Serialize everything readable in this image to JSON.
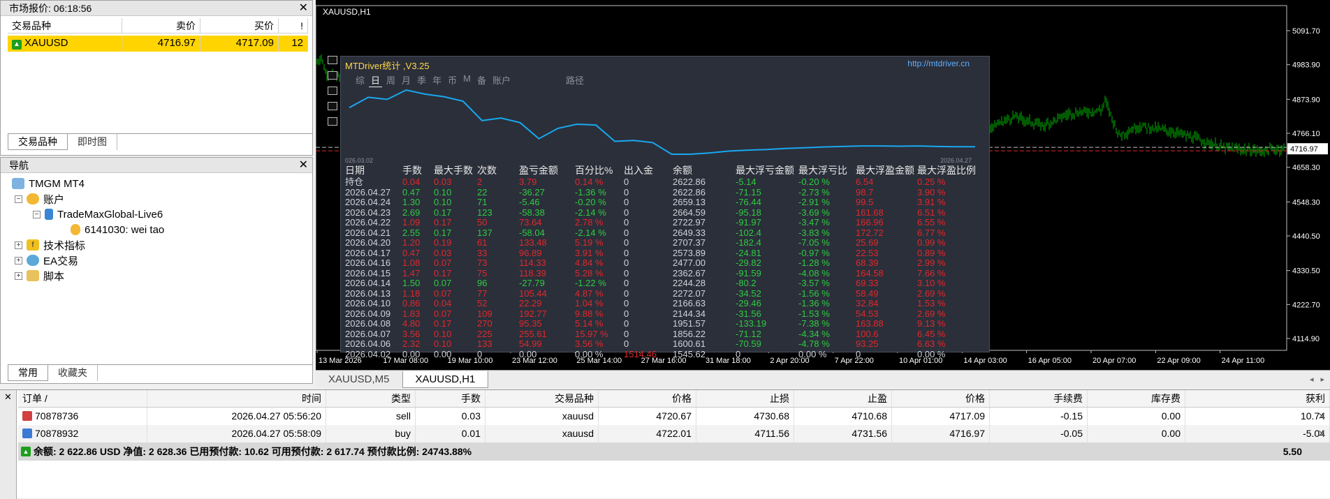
{
  "market_watch": {
    "title": "市场报价: 06:18:56",
    "columns": [
      "交易品种",
      "卖价",
      "买价",
      "!"
    ],
    "row": {
      "symbol": "XAUUSD",
      "bid": "4716.97",
      "ask": "4717.09",
      "spread": "12"
    },
    "tabs": [
      "交易品种",
      "即时图"
    ]
  },
  "navigator": {
    "title": "导航",
    "items": {
      "root": "TMGM MT4",
      "accounts": "账户",
      "server": "TradeMaxGlobal-Live6",
      "account": "6141030: wei tao",
      "indicators": "技术指标",
      "experts": "EA交易",
      "scripts": "脚本"
    },
    "tabs": [
      "常用",
      "收藏夹"
    ]
  },
  "chart": {
    "symbol_label": "XAUUSD,H1",
    "price_axis": [
      "5091.70",
      "4983.90",
      "4873.90",
      "4766.10",
      "4658.30",
      "4548.30",
      "4440.50",
      "4330.50",
      "4222.70",
      "4114.90"
    ],
    "current_price": "4716.97",
    "time_axis": [
      "13 Mar 2026",
      "17 Mar 08:00",
      "19 Mar 10:00",
      "23 Mar 12:00",
      "25 Mar 14:00",
      "27 Mar 16:00",
      "31 Mar 18:00",
      "2 Apr 20:00",
      "7 Apr 22:00",
      "10 Apr 01:00",
      "14 Apr 03:00",
      "16 Apr 05:00",
      "20 Apr 07:00",
      "22 Apr 09:00",
      "24 Apr 11:00"
    ],
    "tabs": [
      "XAUUSD,M5",
      "XAUUSD,H1"
    ],
    "colors": {
      "bars": "#00b400",
      "bid_line": "#c0c0c0",
      "ask_line": "#e0282b",
      "background": "#000000"
    }
  },
  "mtdriver": {
    "title": "MTDriver统计 ,V3.25",
    "url": "http://mtdriver.cn",
    "menu": [
      "综",
      "日",
      "周",
      "月",
      "季",
      "年",
      "币",
      "M",
      "备",
      "账户",
      "路径"
    ],
    "curve_start_label": "026.03.02",
    "curve_end_label": "2026.04.27",
    "headers": [
      "日期",
      "手数",
      "最大手数",
      "次数",
      "盈亏金额",
      "百分比%",
      "出入金",
      "余额",
      "最大浮亏金额",
      "最大浮亏比",
      "最大浮盈金额",
      "最大浮盈比例"
    ],
    "rows": [
      [
        "持仓",
        "0.04",
        "0.03",
        "2",
        "3.79",
        "0.14 %",
        "0",
        "2622.86",
        "-5.14",
        "-0.20 %",
        "6.54",
        "0.25 %"
      ],
      [
        "2026.04.27",
        "0.47",
        "0.10",
        "22",
        "-36.27",
        "-1.36 %",
        "0",
        "2622.86",
        "-71.15",
        "-2.73 %",
        "98.7",
        "3.90 %"
      ],
      [
        "2026.04.24",
        "1.30",
        "0.10",
        "71",
        "-5.46",
        "-0.20 %",
        "0",
        "2659.13",
        "-76.44",
        "-2.91 %",
        "99.5",
        "3.91 %"
      ],
      [
        "2026.04.23",
        "2.69",
        "0.17",
        "123",
        "-58.38",
        "-2.14 %",
        "0",
        "2664.59",
        "-95.18",
        "-3.69 %",
        "161.68",
        "6.51 %"
      ],
      [
        "2026.04.22",
        "1.09",
        "0.17",
        "50",
        "73.64",
        "2.78 %",
        "0",
        "2722.97",
        "-91.97",
        "-3.47 %",
        "166.96",
        "6.55 %"
      ],
      [
        "2026.04.21",
        "2.55",
        "0.17",
        "137",
        "-58.04",
        "-2.14 %",
        "0",
        "2649.33",
        "-102.4",
        "-3.83 %",
        "172.72",
        "6.77 %"
      ],
      [
        "2026.04.20",
        "1.20",
        "0.19",
        "61",
        "133.48",
        "5.19 %",
        "0",
        "2707.37",
        "-182.4",
        "-7.05 %",
        "25.69",
        "0.99 %"
      ],
      [
        "2026.04.17",
        "0.47",
        "0.03",
        "33",
        "96.89",
        "3.91 %",
        "0",
        "2573.89",
        "-24.81",
        "-0.97 %",
        "22.53",
        "0.89 %"
      ],
      [
        "2026.04.16",
        "1.08",
        "0.07",
        "73",
        "114.33",
        "4.84 %",
        "0",
        "2477.00",
        "-29.82",
        "-1.28 %",
        "68.39",
        "2.99 %"
      ],
      [
        "2026.04.15",
        "1.47",
        "0.17",
        "75",
        "118.39",
        "5.28 %",
        "0",
        "2362.67",
        "-91.59",
        "-4.08 %",
        "164.58",
        "7.66 %"
      ],
      [
        "2026.04.14",
        "1.50",
        "0.07",
        "96",
        "-27.79",
        "-1.22 %",
        "0",
        "2244.28",
        "-80.2",
        "-3.57 %",
        "69.33",
        "3.10 %"
      ],
      [
        "2026.04.13",
        "1.18",
        "0.07",
        "77",
        "105.44",
        "4.87 %",
        "0",
        "2272.07",
        "-34.52",
        "-1.56 %",
        "58.49",
        "2.69 %"
      ],
      [
        "2026.04.10",
        "0.86",
        "0.04",
        "52",
        "22.29",
        "1.04 %",
        "0",
        "2166.63",
        "-29.46",
        "-1.36 %",
        "32.84",
        "1.53 %"
      ],
      [
        "2026.04.09",
        "1.83",
        "0.07",
        "109",
        "192.77",
        "9.88 %",
        "0",
        "2144.34",
        "-31.56",
        "-1.53 %",
        "54.53",
        "2.69 %"
      ],
      [
        "2026.04.08",
        "4.80",
        "0.17",
        "270",
        "95.35",
        "5.14 %",
        "0",
        "1951.57",
        "-133.19",
        "-7.38 %",
        "163.88",
        "9.13 %"
      ],
      [
        "2026.04.07",
        "3.56",
        "0.10",
        "225",
        "255.61",
        "15.97 %",
        "0",
        "1856.22",
        "-71.12",
        "-4.34 %",
        "100.6",
        "6.45 %"
      ],
      [
        "2026.04.06",
        "2.32",
        "0.10",
        "133",
        "54.99",
        "3.56 %",
        "0",
        "1600.61",
        "-70.59",
        "-4.78 %",
        "93.25",
        "6.63 %"
      ],
      [
        "2026.04.02",
        "0.00",
        "0.00",
        "0",
        "0.00",
        "0.00 %",
        "1514.46",
        "1545.62",
        "0",
        "0.00 %",
        "0",
        "0.00 %"
      ]
    ],
    "row_sign": [
      1,
      -1,
      -1,
      -1,
      1,
      -1,
      1,
      1,
      1,
      1,
      -1,
      1,
      1,
      1,
      1,
      1,
      1,
      0
    ],
    "equity_curve": [
      2420,
      2460,
      2452,
      2488,
      2472,
      2462,
      2445,
      2370,
      2380,
      2362,
      2300,
      2340,
      2356,
      2353,
      2290,
      2293,
      2285,
      2240,
      2240,
      2245,
      2252,
      2256,
      2258,
      2262,
      2265,
      2268,
      2270,
      2272,
      2272,
      2271,
      2272,
      2270,
      2269,
      2269
    ],
    "colors": {
      "curve": "#18a8f0",
      "positive": "#2ecc40",
      "negative": "#e0282b"
    }
  },
  "terminal": {
    "headers": [
      "订单",
      "时间",
      "类型",
      "手数",
      "交易品种",
      "价格",
      "止损",
      "止盈",
      "价格",
      "手续费",
      "库存费",
      "获利"
    ],
    "sort_mark": "/",
    "orders": [
      [
        "70878736",
        "2026.04.27 05:56:20",
        "sell",
        "0.03",
        "xauusd",
        "4720.67",
        "4730.68",
        "4710.68",
        "4717.09",
        "-0.15",
        "0.00",
        "10.74"
      ],
      [
        "70878932",
        "2026.04.27 05:58:09",
        "buy",
        "0.01",
        "xauusd",
        "4722.01",
        "4711.56",
        "4731.56",
        "4716.97",
        "-0.05",
        "0.00",
        "-5.04"
      ]
    ],
    "balance_line": "余额: 2 622.86 USD  净值: 2 628.36  已用预付款: 10.62  可用预付款: 2 617.74  预付款比例: 24743.88%",
    "total_profit": "5.50"
  }
}
